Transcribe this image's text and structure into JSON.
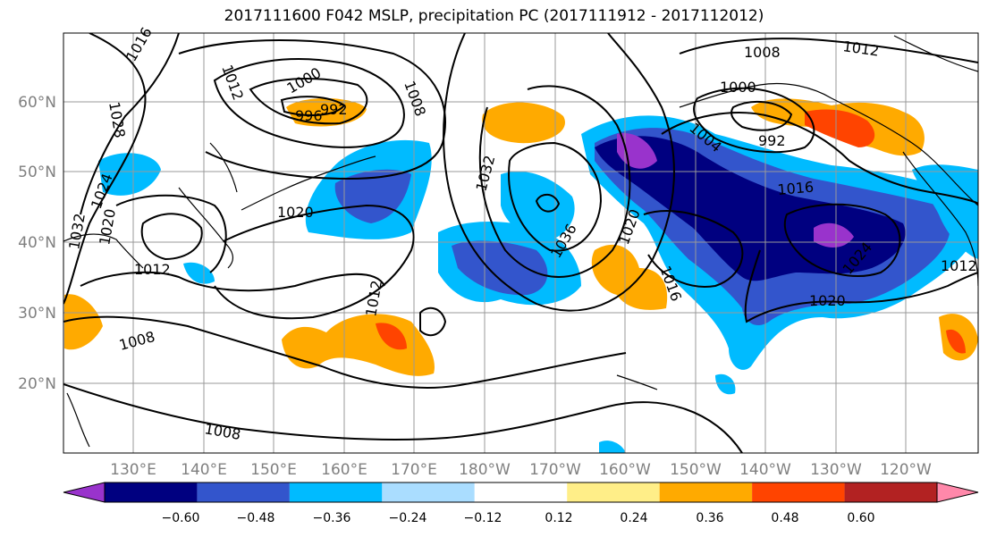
{
  "title": "2017111600 F042 MSLP, precipitation PC (2017111912 - 2017112012)",
  "lat_labels": [
    "60°N",
    "50°N",
    "40°N",
    "30°N",
    "20°N"
  ],
  "lon_labels": [
    "130°E",
    "140°E",
    "150°E",
    "160°E",
    "170°E",
    "180°W",
    "170°W",
    "160°W",
    "150°W",
    "140°W",
    "130°W",
    "120°W"
  ],
  "isobar_labels": [
    "1016",
    "1012",
    "1028",
    "1000",
    "996",
    "992",
    "1008",
    "1024",
    "1020",
    "1020",
    "1032",
    "1032",
    "1012",
    "1008",
    "1008",
    "1012",
    "1036",
    "1020",
    "1016",
    "1004",
    "1000",
    "992",
    "1008",
    "1012",
    "1016",
    "1024",
    "1020",
    "1012"
  ],
  "colorbar": {
    "colors": [
      "#9933cc",
      "#000080",
      "#3355cc",
      "#00bbff",
      "#aaddff",
      "#ffffff",
      "#ffee88",
      "#ffaa00",
      "#ff4400",
      "#b22222",
      "#ff88aa"
    ],
    "tick_labels": [
      "−0.60",
      "−0.48",
      "−0.36",
      "−0.24",
      "−0.12",
      "0.12",
      "0.24",
      "0.36",
      "0.48",
      "0.60"
    ]
  }
}
